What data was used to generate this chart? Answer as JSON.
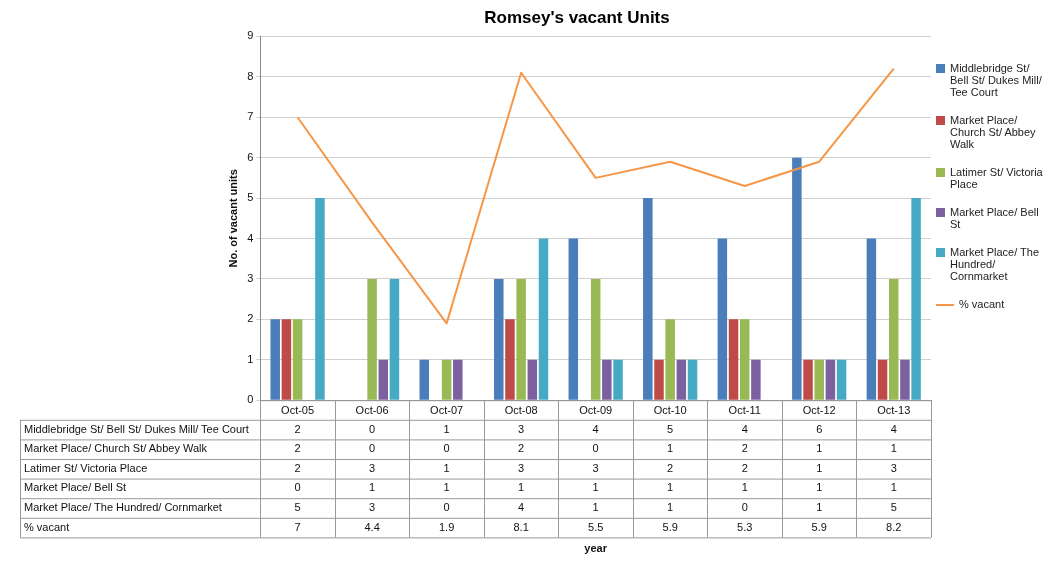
{
  "chart_data": {
    "type": "bar",
    "title": "Romsey's vacant Units",
    "annotations": [
      "year"
    ],
    "ylabel": "No. of vacant units",
    "categories": [
      "Oct-05",
      "Oct-06",
      "Oct-07",
      "Oct-08",
      "Oct-09",
      "Oct-10",
      "Oct-11",
      "Oct-12",
      "Oct-13"
    ],
    "series": [
      {
        "name": "Middlebridge St/ Bell St/ Dukes Mill/ Tee Court",
        "color": "#4a7ebb",
        "values": [
          2,
          0,
          1,
          3,
          4,
          5,
          4,
          6,
          4
        ]
      },
      {
        "name": "Market Place/ Church St/ Abbey Walk",
        "color": "#be4b48",
        "values": [
          2,
          0,
          0,
          2,
          0,
          1,
          2,
          1,
          1
        ]
      },
      {
        "name": "Latimer St/ Victoria Place",
        "color": "#98b954",
        "values": [
          2,
          3,
          1,
          3,
          3,
          2,
          2,
          1,
          3
        ]
      },
      {
        "name": "Market Place/ Bell St",
        "color": "#7d60a0",
        "values": [
          0,
          1,
          1,
          1,
          1,
          1,
          1,
          1,
          1
        ]
      },
      {
        "name": "Market Place/ The Hundred/ Cornmarket",
        "color": "#46aac5",
        "values": [
          5,
          3,
          0,
          4,
          1,
          1,
          0,
          1,
          5
        ]
      },
      {
        "name": "% vacant",
        "type": "line",
        "color": "#f79646",
        "values": [
          7,
          4.4,
          1.9,
          8.1,
          5.5,
          5.9,
          5.3,
          5.9,
          8.2
        ]
      }
    ],
    "ylim": [
      0,
      9
    ],
    "yticks": [
      0,
      1,
      2,
      3,
      4,
      5,
      6,
      7,
      8,
      9
    ],
    "grid": "y",
    "legend": "right",
    "marker": "none",
    "data_labels": true
  }
}
